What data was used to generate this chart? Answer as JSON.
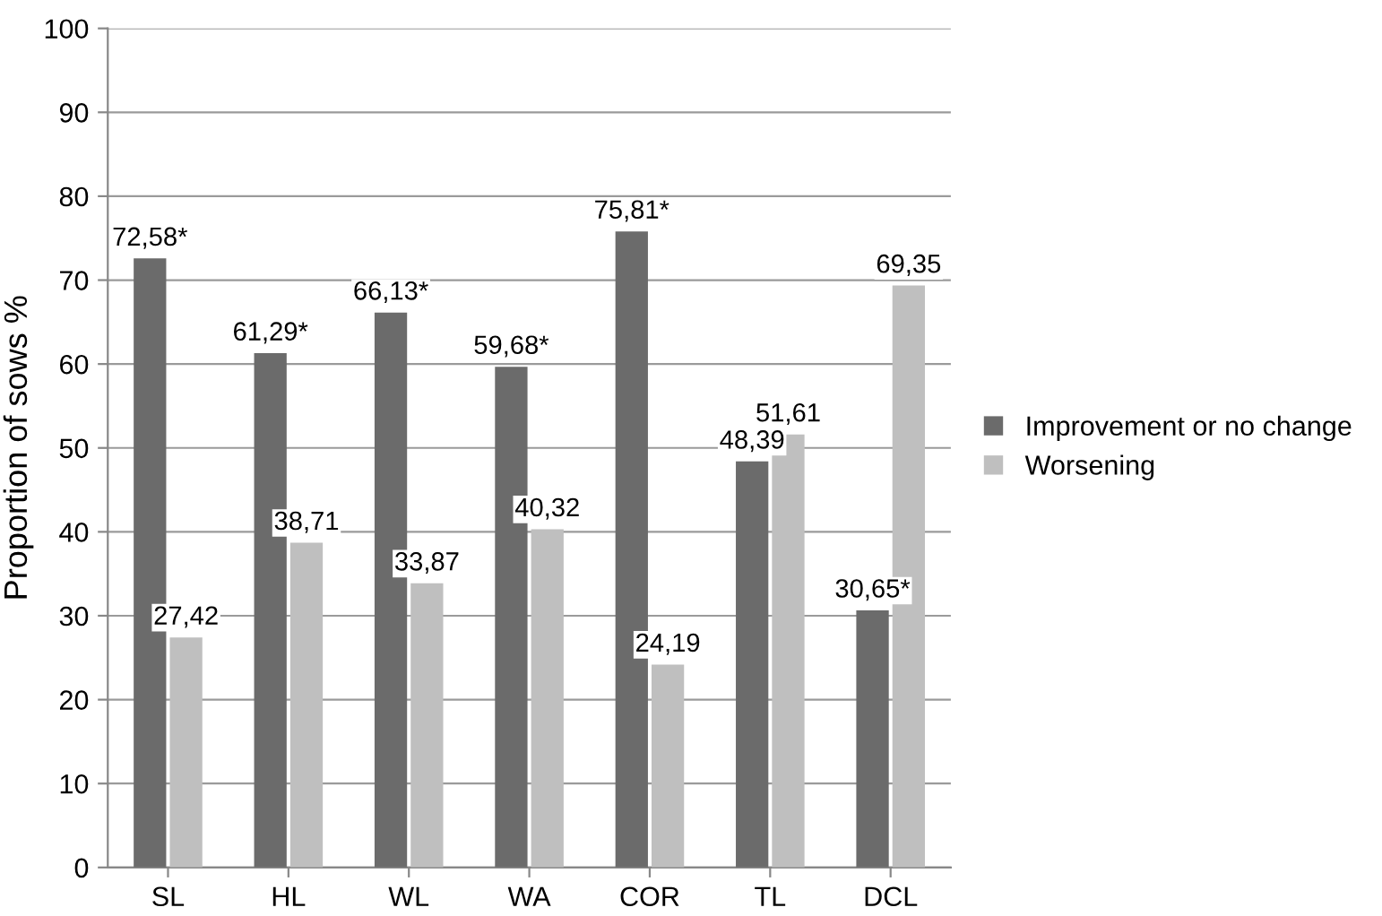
{
  "chart_data": {
    "type": "bar",
    "ylabel": "Proportion of sows %",
    "categories": [
      "SL",
      "HL",
      "WL",
      "WA",
      "COR",
      "TL",
      "DCL"
    ],
    "series": [
      {
        "name": "Improvement or no change",
        "color": "#6b6b6b",
        "values": [
          72.58,
          61.29,
          66.13,
          59.68,
          75.81,
          48.39,
          30.65
        ],
        "value_labels": [
          "72,58*",
          "61,29*",
          "66,13*",
          "59,68*",
          "75,81*",
          "48,39",
          "30,65*"
        ]
      },
      {
        "name": "Worsening",
        "color": "#bfbfbf",
        "values": [
          27.42,
          38.71,
          33.87,
          40.32,
          24.19,
          51.61,
          69.35
        ],
        "value_labels": [
          "27,42",
          "38,71",
          "33,87",
          "40,32",
          "24,19",
          "51,61",
          "69,35"
        ]
      }
    ],
    "ylim": [
      0,
      100
    ],
    "yticks": [
      0,
      10,
      20,
      30,
      40,
      50,
      60,
      70,
      80,
      90,
      100
    ],
    "grid": "y",
    "legend": "right"
  }
}
